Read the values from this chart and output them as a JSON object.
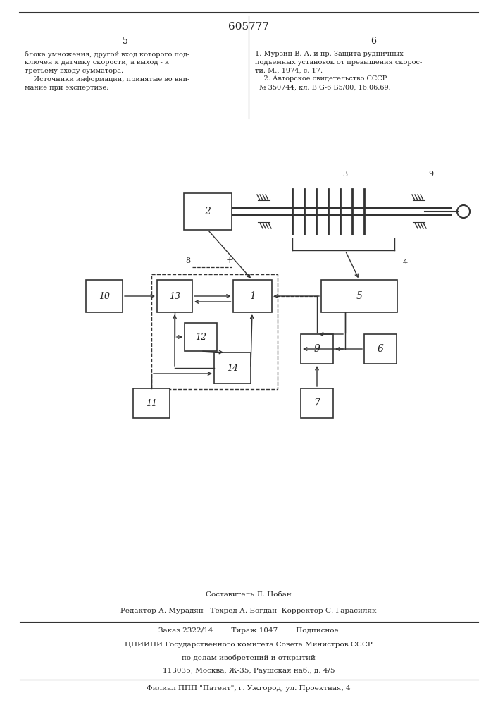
{
  "page_title": "605777",
  "col_left_num": "5",
  "col_right_num": "6",
  "col_left_text": "блока умножения, другой вход которого под-\nключен к датчику скорости, а выход - к\nтретьему входу сумматора.\n    Источники информации, принятые во вни-\nмание при экспертизе:",
  "col_right_text": "1. Мурзин В. А. и пр. Защита рудничных\nподъемных установок от превышения скорос-\nти. М., 1974, с. 17.\n    2. Авторское свидетельство СССР\n  № 350744, кл. В G-6 Б5/00, 16.06.69.",
  "footer_line1": "Составитель Л. Цобан",
  "footer_line2": "Редактор А. Мурадян   Техред А. Богдан  Корректор С. Гарасиляк",
  "footer_line3": "Заказ 2322/14        Тираж 1047        Подписное",
  "footer_line4": "ЦНИИПИ Государственного комитета Совета Министров СССР",
  "footer_line5": "по делам изобретений и открытий",
  "footer_line6": "113035, Москва, Ж-35, Раушская наб., д. 4/5",
  "footer_line7": "Филиал ППП \"Патент\", г. Ужгород, ул. Проектная, 4",
  "bg_color": "#ffffff",
  "text_color": "#222222",
  "border_color": "#333333"
}
